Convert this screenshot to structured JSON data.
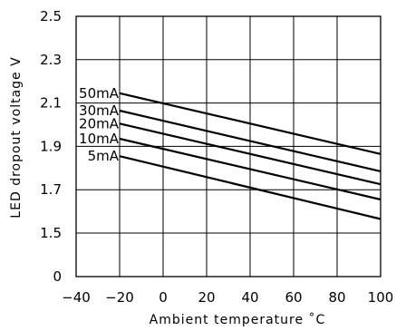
{
  "chart_data": {
    "type": "line",
    "xlabel": "Ambient temperature ˚C",
    "ylabel": "LED dropout voltage V",
    "xlim": [
      -40,
      100
    ],
    "ylim": [
      0,
      2.5
    ],
    "y_axis_break": true,
    "x_ticks": [
      "−40",
      "−20",
      "0",
      "20",
      "40",
      "60",
      "80",
      "100"
    ],
    "x_tick_values": [
      -40,
      -20,
      0,
      20,
      40,
      60,
      80,
      100
    ],
    "y_ticks": [
      "0",
      "1.5",
      "1.7",
      "1.9",
      "2.1",
      "2.3",
      "2.5"
    ],
    "y_tick_values": [
      0,
      1.5,
      1.7,
      1.9,
      2.1,
      2.3,
      2.5
    ],
    "grid": true,
    "series": [
      {
        "name": "50mA",
        "x": [
          -20,
          100
        ],
        "y": [
          2.145,
          1.865
        ]
      },
      {
        "name": "30mA",
        "x": [
          -20,
          100
        ],
        "y": [
          2.065,
          1.785
        ]
      },
      {
        "name": "20mA",
        "x": [
          -20,
          100
        ],
        "y": [
          2.005,
          1.725
        ]
      },
      {
        "name": "10mA",
        "x": [
          -20,
          100
        ],
        "y": [
          1.935,
          1.655
        ]
      },
      {
        "name": "5mA",
        "x": [
          -20,
          100
        ],
        "y": [
          1.855,
          1.565
        ]
      }
    ]
  }
}
